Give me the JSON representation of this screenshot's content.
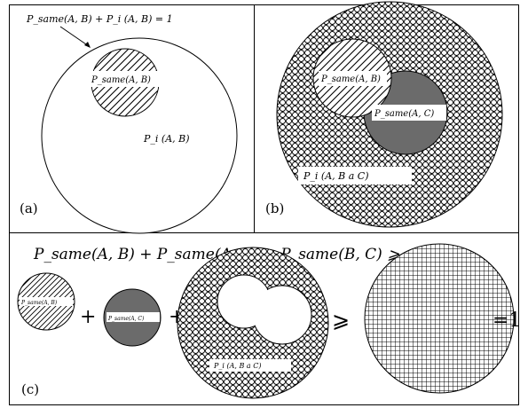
{
  "panels": {
    "a": {
      "tag": "(a)",
      "top_equation": "P_same(A, B) + P_i   (A, B) = 1",
      "inner_label": "P_same(A, B)",
      "outer_label": "P_i   (A, B)"
    },
    "b": {
      "tag": "(b)",
      "label_ab": "P_same(A, B)",
      "label_ac": "P_same(A, C)",
      "outer_label": "P_i   (A, B a     C)"
    },
    "c": {
      "tag": "(c)",
      "equation": "P_same(A, B) + P_same(A, C) + P_same(B, C) ⩾",
      "small_label_ab": "P_same(A, B)",
      "small_label_ac": "P_same(A, C)",
      "plus_sign": "+",
      "geq_sign": "⩾",
      "equals_one": "=1",
      "outer_label": "P_i   (A, B a     C)"
    }
  },
  "colors": {
    "gray_fill": "#6b6b6b",
    "line": "#000000",
    "background": "#ffffff"
  }
}
